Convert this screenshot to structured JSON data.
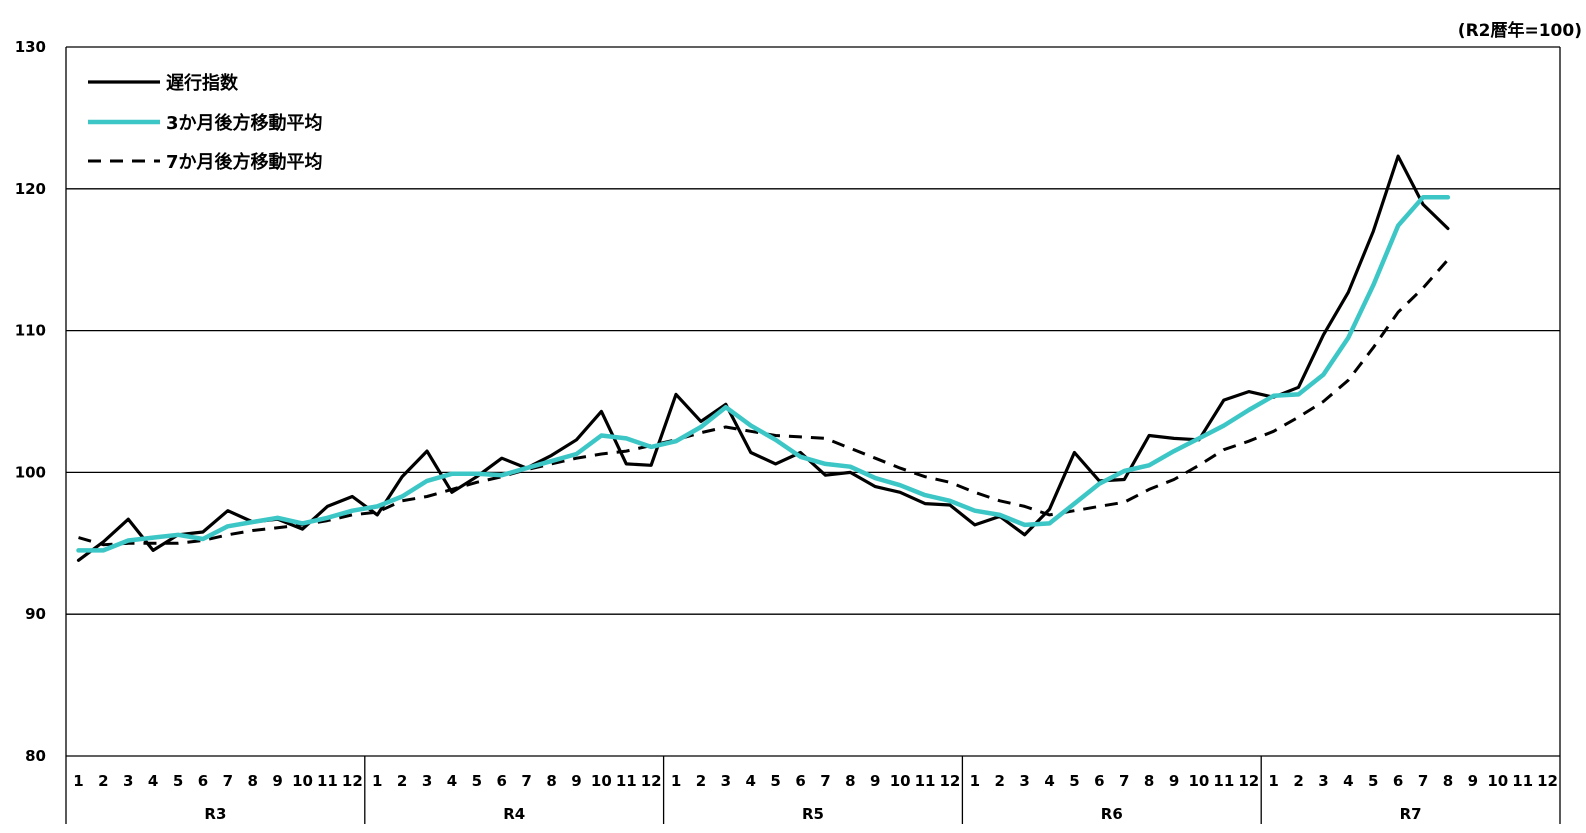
{
  "unit_note": "(R2暦年=100)",
  "chart_data": {
    "type": "line",
    "ylim": [
      80,
      130
    ],
    "yticks": [
      80,
      90,
      100,
      110,
      120,
      130
    ],
    "grid": true,
    "legend_placement": "top-left",
    "month_labels": [
      "1",
      "2",
      "3",
      "4",
      "5",
      "6",
      "7",
      "8",
      "9",
      "10",
      "11",
      "12"
    ],
    "years": [
      "R3",
      "R4",
      "R5",
      "R6",
      "R7"
    ],
    "series": [
      {
        "name": "遅行指数",
        "color": "#000000",
        "style": "solid",
        "values": [
          93.8,
          95.1,
          96.7,
          94.5,
          95.6,
          95.8,
          97.3,
          96.5,
          96.7,
          96.0,
          97.6,
          98.3,
          97.0,
          99.7,
          101.5,
          98.6,
          99.7,
          101.0,
          100.3,
          101.2,
          102.3,
          104.3,
          100.6,
          100.5,
          105.5,
          103.6,
          104.8,
          101.4,
          100.6,
          101.4,
          99.8,
          100.0,
          99.0,
          98.6,
          97.8,
          97.7,
          96.3,
          96.9,
          95.6,
          97.4,
          101.4,
          99.4,
          99.5,
          102.6,
          102.4,
          102.3,
          105.1,
          105.7,
          105.3,
          106.0,
          109.7,
          112.7,
          117.0,
          122.3,
          118.9,
          117.2
        ]
      },
      {
        "name": "3か月後方移動平均",
        "color": "#3cc6c6",
        "style": "solid",
        "values": [
          94.5,
          94.5,
          95.2,
          95.4,
          95.6,
          95.3,
          96.2,
          96.5,
          96.8,
          96.4,
          96.8,
          97.3,
          97.6,
          98.3,
          99.4,
          99.9,
          99.9,
          99.8,
          100.3,
          100.8,
          101.3,
          102.6,
          102.4,
          101.8,
          102.2,
          103.2,
          104.6,
          103.3,
          102.3,
          101.1,
          100.6,
          100.4,
          99.6,
          99.1,
          98.4,
          98.0,
          97.3,
          97.0,
          96.3,
          96.4,
          97.8,
          99.2,
          100.1,
          100.5,
          101.5,
          102.4,
          103.3,
          104.4,
          105.4,
          105.5,
          106.9,
          109.5,
          113.2,
          117.4,
          119.4,
          119.4
        ]
      },
      {
        "name": "7か月後方移動平均",
        "color": "#000000",
        "style": "dashed",
        "values": [
          95.4,
          94.9,
          95.0,
          95.0,
          95.0,
          95.2,
          95.6,
          95.9,
          96.1,
          96.3,
          96.6,
          97.0,
          97.2,
          98.0,
          98.3,
          98.8,
          99.3,
          99.7,
          100.2,
          100.6,
          101.0,
          101.3,
          101.5,
          101.9,
          102.3,
          102.8,
          103.2,
          102.9,
          102.6,
          102.5,
          102.4,
          101.7,
          101.0,
          100.3,
          99.7,
          99.3,
          98.6,
          98.0,
          97.6,
          97.0,
          97.3,
          97.6,
          97.9,
          98.8,
          99.5,
          100.5,
          101.6,
          102.2,
          102.9,
          103.9,
          105.0,
          106.5,
          108.8,
          111.3,
          113.0,
          115.0
        ]
      }
    ]
  }
}
